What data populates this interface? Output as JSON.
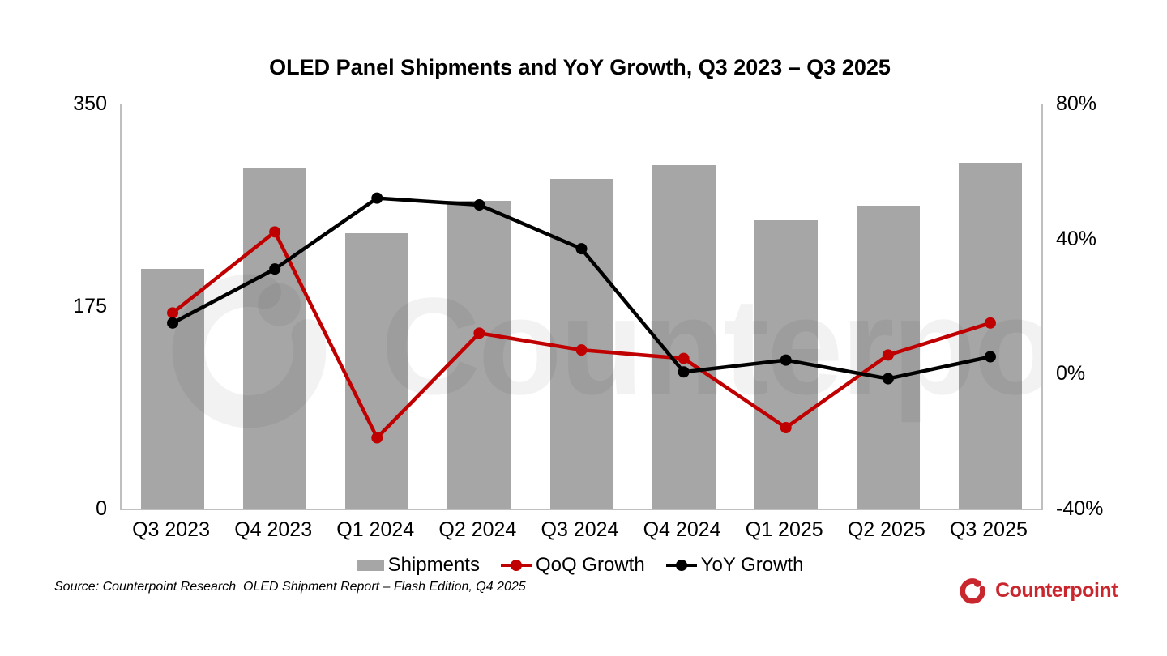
{
  "title": "OLED Panel Shipments and YoY Growth, Q3 2023 – Q3 2025",
  "source_note": "Source: Counterpoint Research  OLED Shipment Report – Flash Edition, Q4 2025",
  "watermark_text": "Counterpoint",
  "brand": {
    "name": "Counterpoint",
    "color": "#C9262E"
  },
  "colors": {
    "bar": "#A6A6A6",
    "qoq_line": "#C00000",
    "yoy_line": "#000000",
    "axis_line": "#BFBFBF",
    "background": "#FFFFFF"
  },
  "chart_data": {
    "type": "combo",
    "title": "OLED Panel Shipments and YoY Growth, Q3 2023 – Q3 2025",
    "categories": [
      "Q3 2023",
      "Q4 2023",
      "Q1 2024",
      "Q2 2024",
      "Q3 2024",
      "Q4 2024",
      "Q1 2025",
      "Q2 2025",
      "Q3 2025"
    ],
    "series": [
      {
        "name": "Shipments",
        "type": "bar",
        "axis": "left",
        "color": "#A6A6A6",
        "values": [
          207,
          294,
          238,
          266,
          285,
          297,
          249,
          262,
          299
        ]
      },
      {
        "name": "QoQ Growth",
        "type": "line",
        "axis": "right",
        "color": "#C00000",
        "values": [
          18,
          42,
          -19,
          12,
          7,
          4.5,
          -16,
          5.5,
          15
        ]
      },
      {
        "name": "YoY Growth",
        "type": "line",
        "axis": "right",
        "color": "#000000",
        "values": [
          15,
          31,
          52,
          50,
          37,
          0.5,
          4,
          -1.5,
          5
        ]
      }
    ],
    "axes": {
      "left": {
        "min": 0,
        "max": 350,
        "ticks": [
          {
            "value": 350,
            "label": "350"
          },
          {
            "value": 175,
            "label": "175"
          },
          {
            "value": 0,
            "label": "0"
          }
        ]
      },
      "right": {
        "min": -40,
        "max": 80,
        "ticks": [
          {
            "value": 80,
            "label": "80%"
          },
          {
            "value": 40,
            "label": "40%"
          },
          {
            "value": 0,
            "label": "0%"
          },
          {
            "value": -40,
            "label": "-40%"
          }
        ]
      }
    },
    "grid": false,
    "legend_position": "bottom"
  }
}
